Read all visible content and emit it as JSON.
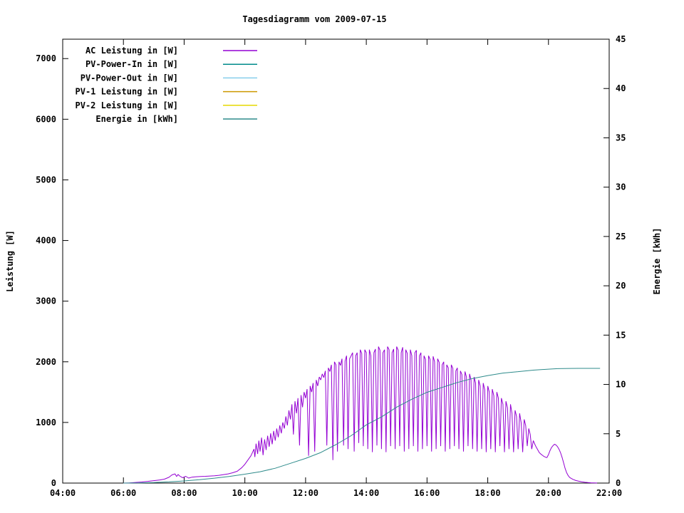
{
  "page": {
    "title": "Tagesdiagramm vom 2009-07-15"
  },
  "chart_data": {
    "type": "line",
    "title": "Tagesdiagramm vom 2009-07-15",
    "ylabel_left": "Leistung [W]",
    "ylabel_right": "Energie [kWh]",
    "xlim_hours": [
      4,
      22
    ],
    "x_ticks": [
      [
        4,
        "04:00"
      ],
      [
        6,
        "06:00"
      ],
      [
        8,
        "08:00"
      ],
      [
        10,
        "10:00"
      ],
      [
        12,
        "12:00"
      ],
      [
        14,
        "14:00"
      ],
      [
        16,
        "16:00"
      ],
      [
        18,
        "18:00"
      ],
      [
        20,
        "20:00"
      ],
      [
        22,
        "22:00"
      ]
    ],
    "ylim_left": [
      0,
      7320
    ],
    "yticks_left": [
      0,
      1000,
      2000,
      3000,
      4000,
      5000,
      6000,
      7000
    ],
    "ylim_right": [
      0,
      45
    ],
    "yticks_right": [
      0,
      5,
      10,
      15,
      20,
      25,
      30,
      35,
      40,
      45
    ],
    "grid": false,
    "border_color": "#000000",
    "legend": {
      "position": "top-left-inside"
    },
    "series": [
      {
        "name": "AC Leistung in [W]",
        "color": "#9400d3",
        "axis": "left",
        "points": [
          [
            6,
            0
          ],
          [
            6.2,
            4
          ],
          [
            6.4,
            10
          ],
          [
            6.6,
            18
          ],
          [
            6.8,
            28
          ],
          [
            7,
            40
          ],
          [
            7.2,
            52
          ],
          [
            7.35,
            65
          ],
          [
            7.5,
            95
          ],
          [
            7.6,
            135
          ],
          [
            7.7,
            152
          ],
          [
            7.75,
            108
          ],
          [
            7.8,
            142
          ],
          [
            7.85,
            118
          ],
          [
            7.95,
            88
          ],
          [
            8.05,
            112
          ],
          [
            8.15,
            82
          ],
          [
            8.25,
            96
          ],
          [
            8.4,
            104
          ],
          [
            8.55,
            108
          ],
          [
            8.7,
            112
          ],
          [
            8.85,
            116
          ],
          [
            9,
            120
          ],
          [
            9.15,
            128
          ],
          [
            9.3,
            140
          ],
          [
            9.45,
            152
          ],
          [
            9.6,
            170
          ],
          [
            9.75,
            195
          ],
          [
            9.9,
            255
          ],
          [
            10,
            310
          ],
          [
            10.1,
            380
          ],
          [
            10.2,
            450
          ],
          [
            10.3,
            560
          ],
          [
            10.33,
            430
          ],
          [
            10.37,
            650
          ],
          [
            10.42,
            480
          ],
          [
            10.46,
            700
          ],
          [
            10.5,
            520
          ],
          [
            10.55,
            750
          ],
          [
            10.6,
            460
          ],
          [
            10.65,
            720
          ],
          [
            10.7,
            545
          ],
          [
            10.75,
            780
          ],
          [
            10.8,
            600
          ],
          [
            10.85,
            820
          ],
          [
            10.9,
            640
          ],
          [
            10.95,
            860
          ],
          [
            11,
            700
          ],
          [
            11.05,
            900
          ],
          [
            11.1,
            755
          ],
          [
            11.15,
            950
          ],
          [
            11.2,
            820
          ],
          [
            11.25,
            1000
          ],
          [
            11.3,
            900
          ],
          [
            11.35,
            1100
          ],
          [
            11.4,
            950
          ],
          [
            11.45,
            1200
          ],
          [
            11.5,
            1050
          ],
          [
            11.55,
            1300
          ],
          [
            11.6,
            800
          ],
          [
            11.65,
            1350
          ],
          [
            11.7,
            1150
          ],
          [
            11.75,
            1400
          ],
          [
            11.8,
            620
          ],
          [
            11.85,
            1450
          ],
          [
            11.9,
            1250
          ],
          [
            11.95,
            1500
          ],
          [
            12,
            1400
          ],
          [
            12.05,
            1550
          ],
          [
            12.1,
            450
          ],
          [
            12.15,
            1600
          ],
          [
            12.2,
            1500
          ],
          [
            12.25,
            1650
          ],
          [
            12.3,
            520
          ],
          [
            12.35,
            1700
          ],
          [
            12.4,
            1600
          ],
          [
            12.45,
            1750
          ],
          [
            12.5,
            1700
          ],
          [
            12.55,
            1800
          ],
          [
            12.6,
            1740
          ],
          [
            12.65,
            1850
          ],
          [
            12.7,
            620
          ],
          [
            12.75,
            1900
          ],
          [
            12.8,
            1840
          ],
          [
            12.85,
            1950
          ],
          [
            12.9,
            380
          ],
          [
            12.95,
            2000
          ],
          [
            13,
            1950
          ],
          [
            13.05,
            520
          ],
          [
            13.1,
            2000
          ],
          [
            13.15,
            1940
          ],
          [
            13.2,
            2050
          ],
          [
            13.25,
            620
          ],
          [
            13.3,
            2010
          ],
          [
            13.35,
            2100
          ],
          [
            13.4,
            560
          ],
          [
            13.45,
            2050
          ],
          [
            13.5,
            2100
          ],
          [
            13.55,
            2150
          ],
          [
            13.6,
            520
          ],
          [
            13.65,
            2100
          ],
          [
            13.7,
            2150
          ],
          [
            13.75,
            660
          ],
          [
            13.8,
            2200
          ],
          [
            13.85,
            2140
          ],
          [
            13.9,
            610
          ],
          [
            13.95,
            2200
          ],
          [
            14,
            2150
          ],
          [
            14.05,
            560
          ],
          [
            14.1,
            2200
          ],
          [
            14.15,
            2100
          ],
          [
            14.2,
            510
          ],
          [
            14.25,
            2150
          ],
          [
            14.3,
            2210
          ],
          [
            14.35,
            620
          ],
          [
            14.4,
            2250
          ],
          [
            14.45,
            2190
          ],
          [
            14.5,
            560
          ],
          [
            14.55,
            2150
          ],
          [
            14.6,
            2200
          ],
          [
            14.65,
            510
          ],
          [
            14.7,
            2250
          ],
          [
            14.75,
            2200
          ],
          [
            14.8,
            610
          ],
          [
            14.85,
            2150
          ],
          [
            14.9,
            2210
          ],
          [
            14.95,
            560
          ],
          [
            15,
            2250
          ],
          [
            15.05,
            2190
          ],
          [
            15.1,
            610
          ],
          [
            15.15,
            2150
          ],
          [
            15.2,
            2240
          ],
          [
            15.25,
            520
          ],
          [
            15.3,
            2200
          ],
          [
            15.35,
            2140
          ],
          [
            15.4,
            560
          ],
          [
            15.45,
            2200
          ],
          [
            15.5,
            2100
          ],
          [
            15.55,
            610
          ],
          [
            15.6,
            2150
          ],
          [
            15.65,
            2190
          ],
          [
            15.7,
            520
          ],
          [
            15.75,
            2100
          ],
          [
            15.8,
            2150
          ],
          [
            15.85,
            560
          ],
          [
            15.9,
            2100
          ],
          [
            15.95,
            2040
          ],
          [
            16,
            610
          ],
          [
            16.05,
            2100
          ],
          [
            16.1,
            2040
          ],
          [
            16.15,
            520
          ],
          [
            16.2,
            2090
          ],
          [
            16.25,
            2000
          ],
          [
            16.3,
            560
          ],
          [
            16.35,
            2050
          ],
          [
            16.4,
            1990
          ],
          [
            16.45,
            610
          ],
          [
            16.5,
            1950
          ],
          [
            16.55,
            2000
          ],
          [
            16.6,
            520
          ],
          [
            16.65,
            1950
          ],
          [
            16.7,
            1900
          ],
          [
            16.75,
            560
          ],
          [
            16.8,
            1950
          ],
          [
            16.85,
            1890
          ],
          [
            16.9,
            610
          ],
          [
            16.95,
            1850
          ],
          [
            17,
            1900
          ],
          [
            17.05,
            560
          ],
          [
            17.1,
            1850
          ],
          [
            17.15,
            1790
          ],
          [
            17.2,
            520
          ],
          [
            17.25,
            1840
          ],
          [
            17.3,
            1750
          ],
          [
            17.35,
            610
          ],
          [
            17.4,
            1800
          ],
          [
            17.45,
            1700
          ],
          [
            17.5,
            560
          ],
          [
            17.55,
            1750
          ],
          [
            17.6,
            1650
          ],
          [
            17.65,
            520
          ],
          [
            17.7,
            1700
          ],
          [
            17.75,
            1600
          ],
          [
            17.8,
            560
          ],
          [
            17.85,
            1650
          ],
          [
            17.9,
            1540
          ],
          [
            17.95,
            510
          ],
          [
            18,
            1600
          ],
          [
            18.05,
            1500
          ],
          [
            18.1,
            560
          ],
          [
            18.15,
            1550
          ],
          [
            18.2,
            1440
          ],
          [
            18.25,
            510
          ],
          [
            18.3,
            1500
          ],
          [
            18.35,
            1400
          ],
          [
            18.4,
            610
          ],
          [
            18.45,
            1400
          ],
          [
            18.5,
            1300
          ],
          [
            18.55,
            510
          ],
          [
            18.6,
            1350
          ],
          [
            18.65,
            1240
          ],
          [
            18.7,
            560
          ],
          [
            18.75,
            1300
          ],
          [
            18.8,
            1150
          ],
          [
            18.85,
            510
          ],
          [
            18.9,
            1200
          ],
          [
            18.95,
            1100
          ],
          [
            19,
            560
          ],
          [
            19.05,
            1150
          ],
          [
            19.1,
            1000
          ],
          [
            19.15,
            510
          ],
          [
            19.2,
            1050
          ],
          [
            19.25,
            950
          ],
          [
            19.3,
            610
          ],
          [
            19.35,
            900
          ],
          [
            19.4,
            800
          ],
          [
            19.45,
            560
          ],
          [
            19.5,
            700
          ],
          [
            19.55,
            640
          ],
          [
            19.6,
            590
          ],
          [
            19.65,
            545
          ],
          [
            19.7,
            500
          ],
          [
            19.75,
            478
          ],
          [
            19.8,
            458
          ],
          [
            19.85,
            440
          ],
          [
            19.9,
            428
          ],
          [
            19.95,
            420
          ],
          [
            20,
            470
          ],
          [
            20.05,
            535
          ],
          [
            20.1,
            585
          ],
          [
            20.15,
            618
          ],
          [
            20.2,
            640
          ],
          [
            20.25,
            628
          ],
          [
            20.3,
            598
          ],
          [
            20.35,
            556
          ],
          [
            20.4,
            498
          ],
          [
            20.45,
            420
          ],
          [
            20.5,
            330
          ],
          [
            20.55,
            240
          ],
          [
            20.6,
            170
          ],
          [
            20.65,
            122
          ],
          [
            20.7,
            92
          ],
          [
            20.8,
            62
          ],
          [
            20.9,
            42
          ],
          [
            21,
            30
          ],
          [
            21.1,
            20
          ],
          [
            21.2,
            13
          ],
          [
            21.3,
            8
          ],
          [
            21.4,
            5
          ],
          [
            21.5,
            3
          ],
          [
            21.6,
            1
          ]
        ]
      },
      {
        "name": "PV-Power-In in [W]",
        "color": "#008b8b",
        "axis": "left",
        "points": []
      },
      {
        "name": "PV-Power-Out in [W]",
        "color": "#87ceeb",
        "axis": "left",
        "points": []
      },
      {
        "name": "PV-1 Leistung in [W]",
        "color": "#cc9900",
        "axis": "left",
        "points": []
      },
      {
        "name": "PV-2 Leistung in [W]",
        "color": "#e6d800",
        "axis": "left",
        "points": []
      },
      {
        "name": "Energie in [kWh]",
        "color": "#2e8b8b",
        "axis": "right",
        "points": [
          [
            6,
            0
          ],
          [
            6.5,
            0.02
          ],
          [
            7,
            0.05
          ],
          [
            7.5,
            0.12
          ],
          [
            8,
            0.22
          ],
          [
            8.5,
            0.35
          ],
          [
            9,
            0.5
          ],
          [
            9.5,
            0.68
          ],
          [
            10,
            0.9
          ],
          [
            10.5,
            1.15
          ],
          [
            11,
            1.5
          ],
          [
            11.5,
            2.0
          ],
          [
            12,
            2.5
          ],
          [
            12.5,
            3.1
          ],
          [
            13,
            3.9
          ],
          [
            13.5,
            4.8
          ],
          [
            14,
            5.9
          ],
          [
            14.5,
            6.7
          ],
          [
            15,
            7.7
          ],
          [
            15.5,
            8.5
          ],
          [
            16,
            9.2
          ],
          [
            16.5,
            9.7
          ],
          [
            17,
            10.2
          ],
          [
            17.5,
            10.6
          ],
          [
            18,
            10.9
          ],
          [
            18.5,
            11.15
          ],
          [
            19,
            11.3
          ],
          [
            19.5,
            11.45
          ],
          [
            20,
            11.55
          ],
          [
            20.3,
            11.6
          ],
          [
            20.7,
            11.62
          ],
          [
            21,
            11.63
          ],
          [
            21.5,
            11.63
          ],
          [
            21.7,
            11.63
          ]
        ]
      }
    ]
  }
}
